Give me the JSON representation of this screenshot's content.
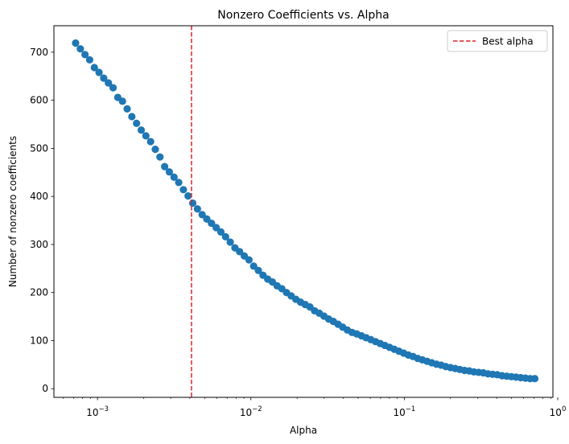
{
  "chart_data": {
    "type": "scatter",
    "title": "Nonzero Coefficients vs. Alpha",
    "xlabel": "Alpha",
    "ylabel": "Number of nonzero coefficients",
    "x_scale": "log",
    "xlim": [
      0.00052,
      0.93
    ],
    "ylim": [
      -18,
      755
    ],
    "x_ticks": [
      {
        "value": 0.001,
        "base": "10",
        "exp": "−3"
      },
      {
        "value": 0.01,
        "base": "10",
        "exp": "−2"
      },
      {
        "value": 0.1,
        "base": "10",
        "exp": "−1"
      },
      {
        "value": 1,
        "base": "10",
        "exp": "0"
      }
    ],
    "y_ticks": [
      0,
      100,
      200,
      300,
      400,
      500,
      600,
      700
    ],
    "grid": false,
    "legend": {
      "position": "top-right",
      "entries": [
        "Best alpha"
      ]
    },
    "best_alpha": 0.0041,
    "colors": {
      "points": "#1f77b4",
      "best_alpha": "#d62728"
    },
    "series": [
      {
        "alpha": [
          0.00072,
          0.000773,
          0.000829,
          0.000889,
          0.000954,
          0.001024,
          0.001098,
          0.001178,
          0.001264,
          0.001356,
          0.001455,
          0.001561,
          0.001675,
          0.001797,
          0.001928,
          0.002068,
          0.002219,
          0.002381,
          0.002554,
          0.00274,
          0.00294,
          0.003154,
          0.003384,
          0.00363,
          0.003895,
          0.004178,
          0.004483,
          0.00481,
          0.00516,
          0.005536,
          0.005939,
          0.006372,
          0.006836,
          0.007334,
          0.007869,
          0.008442,
          0.009057,
          0.009717,
          0.010425,
          0.011184,
          0.011999,
          0.012873,
          0.013811,
          0.014818,
          0.015897,
          0.017055,
          0.018298,
          0.019631,
          0.021061,
          0.022596,
          0.024242,
          0.026008,
          0.027903,
          0.029936,
          0.032117,
          0.034457,
          0.036968,
          0.039661,
          0.04255,
          0.04565,
          0.048976,
          0.052544,
          0.056373,
          0.06048,
          0.064886,
          0.069613,
          0.074685,
          0.080126,
          0.085964,
          0.092227,
          0.098946,
          0.106155,
          0.113889,
          0.122187,
          0.131089,
          0.14064,
          0.150886,
          0.161879,
          0.173673,
          0.186326,
          0.199901,
          0.214465,
          0.23009,
          0.246853,
          0.264838,
          0.284133,
          0.304834,
          0.327043,
          0.35087,
          0.376433,
          0.403858,
          0.433282,
          0.464849,
          0.498716,
          0.535051,
          0.574032,
          0.615854,
          0.660723,
          0.70886
        ],
        "nonzero": [
          719,
          707,
          695,
          684,
          668,
          658,
          646,
          636,
          626,
          606,
          598,
          582,
          566,
          552,
          538,
          526,
          514,
          498,
          482,
          462,
          451,
          440,
          429,
          414,
          401,
          386,
          374,
          362,
          353,
          344,
          335,
          326,
          316,
          305,
          293,
          285,
          276,
          268,
          255,
          246,
          236,
          228,
          222,
          214,
          208,
          200,
          193,
          186,
          180,
          175,
          170,
          162,
          157,
          151,
          145,
          140,
          134,
          128,
          122,
          117,
          114,
          110,
          106,
          102,
          98,
          94,
          90,
          86,
          82,
          78,
          74,
          70,
          67,
          63,
          60,
          57,
          54,
          51,
          49,
          46,
          44,
          42,
          40,
          38,
          37,
          35,
          34,
          33,
          31,
          30,
          29,
          27,
          26,
          25,
          24,
          23,
          22,
          21,
          21
        ]
      }
    ]
  }
}
